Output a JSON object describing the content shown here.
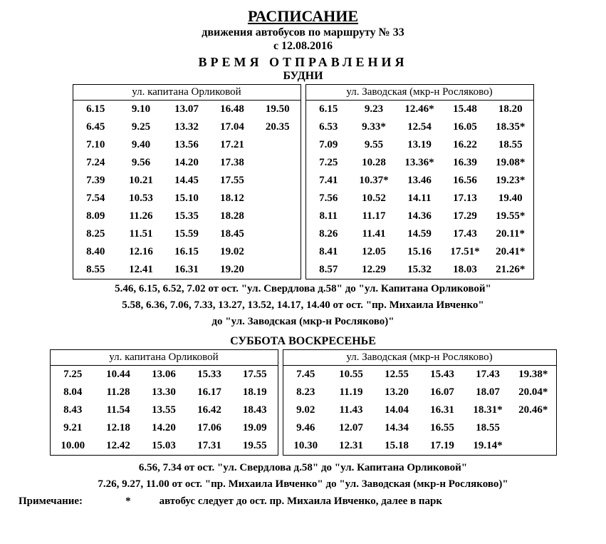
{
  "header": {
    "title": "РАСПИСАНИЕ",
    "subtitle": "движения автобусов по маршруту № 33",
    "date": "с 12.08.2016",
    "departure_label": "ВРЕМЯ ОТПРАВЛЕНИЯ"
  },
  "weekdays": {
    "label": "БУДНИ",
    "left": {
      "header": "ул. капитана Орликовой",
      "rows": [
        [
          "6.15",
          "9.10",
          "13.07",
          "16.48",
          "19.50"
        ],
        [
          "6.45",
          "9.25",
          "13.32",
          "17.04",
          "20.35"
        ],
        [
          "7.10",
          "9.40",
          "13.56",
          "17.21",
          ""
        ],
        [
          "7.24",
          "9.56",
          "14.20",
          "17.38",
          ""
        ],
        [
          "7.39",
          "10.21",
          "14.45",
          "17.55",
          ""
        ],
        [
          "7.54",
          "10.53",
          "15.10",
          "18.12",
          ""
        ],
        [
          "8.09",
          "11.26",
          "15.35",
          "18.28",
          ""
        ],
        [
          "8.25",
          "11.51",
          "15.59",
          "18.45",
          ""
        ],
        [
          "8.40",
          "12.16",
          "16.15",
          "19.02",
          ""
        ],
        [
          "8.55",
          "12.41",
          "16.31",
          "19.20",
          ""
        ]
      ]
    },
    "right": {
      "header": "ул. Заводская (мкр-н Росляково)",
      "rows": [
        [
          "6.15",
          "9.23",
          "12.46*",
          "15.48",
          "18.20"
        ],
        [
          "6.53",
          "9.33*",
          "12.54",
          "16.05",
          "18.35*"
        ],
        [
          "7.09",
          "9.55",
          "13.19",
          "16.22",
          "18.55"
        ],
        [
          "7.25",
          "10.28",
          "13.36*",
          "16.39",
          "19.08*"
        ],
        [
          "7.41",
          "10.37*",
          "13.46",
          "16.56",
          "19.23*"
        ],
        [
          "7.56",
          "10.52",
          "14.11",
          "17.13",
          "19.40"
        ],
        [
          "8.11",
          "11.17",
          "14.36",
          "17.29",
          "19.55*"
        ],
        [
          "8.26",
          "11.41",
          "14.59",
          "17.43",
          "20.11*"
        ],
        [
          "8.41",
          "12.05",
          "15.16",
          "17.51*",
          "20.41*"
        ],
        [
          "8.57",
          "12.29",
          "15.32",
          "18.03",
          "21.26*"
        ]
      ]
    },
    "note1": "5.46, 6.15, 6.52, 7.02 от ост. \"ул. Свердлова д.58\" до \"ул. Капитана Орликовой\"",
    "note2": "5.58, 6.36, 7.06, 7.33, 13.27, 13.52, 14.17, 14.40 от ост. \"пр. Михаила Ивченко\"",
    "note3": "до \"ул. Заводская (мкр-н Росляково)\""
  },
  "weekend": {
    "label": "СУББОТА ВОСКРЕСЕНЬЕ",
    "left": {
      "header": "ул. капитана Орликовой",
      "rows": [
        [
          "7.25",
          "10.44",
          "13.06",
          "15.33",
          "17.55"
        ],
        [
          "8.04",
          "11.28",
          "13.30",
          "16.17",
          "18.19"
        ],
        [
          "8.43",
          "11.54",
          "13.55",
          "16.42",
          "18.43"
        ],
        [
          "9.21",
          "12.18",
          "14.20",
          "17.06",
          "19.09"
        ],
        [
          "10.00",
          "12.42",
          "15.03",
          "17.31",
          "19.55"
        ]
      ]
    },
    "right": {
      "header": "ул. Заводская (мкр-н Росляково)",
      "rows": [
        [
          "7.45",
          "10.55",
          "12.55",
          "15.43",
          "17.43",
          "19.38*"
        ],
        [
          "8.23",
          "11.19",
          "13.20",
          "16.07",
          "18.07",
          "20.04*"
        ],
        [
          "9.02",
          "11.43",
          "14.04",
          "16.31",
          "18.31*",
          "20.46*"
        ],
        [
          "9.46",
          "12.07",
          "14.34",
          "16.55",
          "18.55",
          ""
        ],
        [
          "10.30",
          "12.31",
          "15.18",
          "17.19",
          "19.14*",
          ""
        ]
      ]
    },
    "note1": "6.56, 7.34 от ост. \"ул. Свердлова д.58\" до \"ул. Капитана Орликовой\"",
    "note2": "7.26, 9.27, 11.00 от ост. \"пр. Михаила Ивченко\" до \"ул. Заводская (мкр-н Росляково)\""
  },
  "footnote": {
    "label": "Примечание:",
    "asterisk": "*",
    "text": "автобус следует до ост. пр. Михаила Ивченко, далее в парк"
  }
}
